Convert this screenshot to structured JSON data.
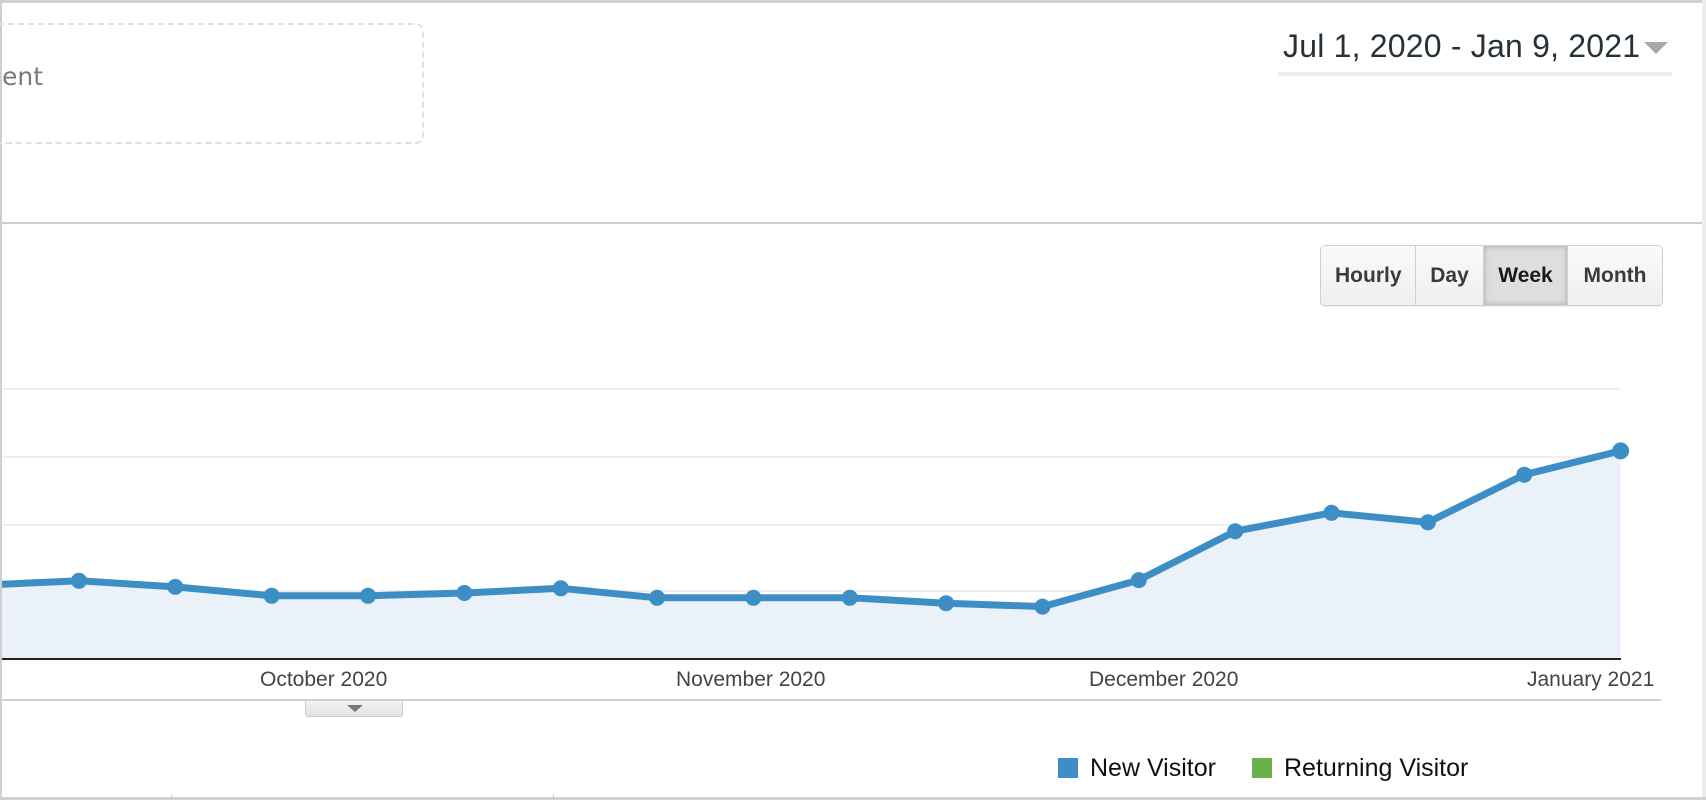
{
  "segment": {
    "partial_label": "ent"
  },
  "date_range": {
    "label": "Jul 1, 2020 - Jan 9, 2021"
  },
  "interval_buttons": [
    {
      "label": "Hourly",
      "active": false
    },
    {
      "label": "Day",
      "active": false
    },
    {
      "label": "Week",
      "active": true
    },
    {
      "label": "Month",
      "active": false
    }
  ],
  "legend": [
    {
      "label": "New Visitor",
      "color": "#3d8ec5"
    },
    {
      "label": "Returning Visitor",
      "color": "#6ab04c"
    }
  ],
  "colors": {
    "line": "#3d8ec5",
    "area": "#eaf1f8",
    "gridline": "#f0f0f0",
    "axis": "#222222"
  },
  "chart_data": {
    "type": "area",
    "title": "",
    "xlabel": "",
    "ylabel": "",
    "x_tick_labels": [
      "October 2020",
      "November 2020",
      "December 2020",
      "January 2021"
    ],
    "y_tick_labels": [],
    "y_units": "gridline intervals (axis labels not visible)",
    "ylim": [
      0,
      4
    ],
    "grid": true,
    "legend_position": "bottom-right",
    "series": [
      {
        "name": "New Visitor",
        "color": "#3d8ec5",
        "x": [
          "wk1",
          "wk2",
          "wk3",
          "wk4",
          "wk5",
          "wk6",
          "wk7",
          "wk8",
          "wk9",
          "wk10",
          "wk11",
          "wk12",
          "wk13",
          "wk14",
          "wk15",
          "wk16",
          "wk17"
        ],
        "values": [
          1.15,
          1.06,
          0.93,
          0.93,
          0.97,
          1.04,
          0.9,
          0.9,
          0.9,
          0.82,
          0.77,
          1.16,
          1.88,
          2.15,
          2.01,
          2.71,
          3.06
        ]
      },
      {
        "name": "Returning Visitor",
        "color": "#6ab04c",
        "values": []
      }
    ]
  }
}
